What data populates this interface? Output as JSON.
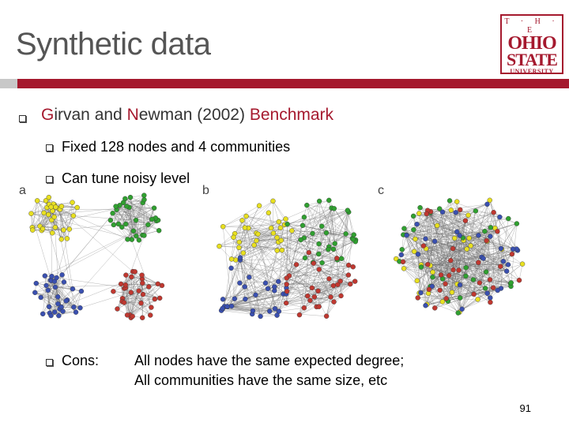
{
  "slide": {
    "title": "Synthetic data",
    "page_number": "91"
  },
  "logo": {
    "line1": "T · H · E",
    "line2": "OHIO",
    "line3": "STATE",
    "line4": "UNIVERSITY"
  },
  "bullets": {
    "main": {
      "g": "G",
      "irvan": "irvan and ",
      "n": "N",
      "ewman": "ewman (2002) ",
      "benchmark": "Benchmark"
    },
    "sub1": "Fixed 128 nodes and 4 communities",
    "sub2": "Can tune noisy level",
    "cons_label": "Cons:",
    "cons_line1": "All nodes have the same expected degree;",
    "cons_line2": "All communities have the same size, etc"
  },
  "figure": {
    "panel_labels": [
      "a",
      "b",
      "c"
    ],
    "community_colors": [
      "#e8e020",
      "#30a030",
      "#3a50b0",
      "#c03830"
    ]
  }
}
